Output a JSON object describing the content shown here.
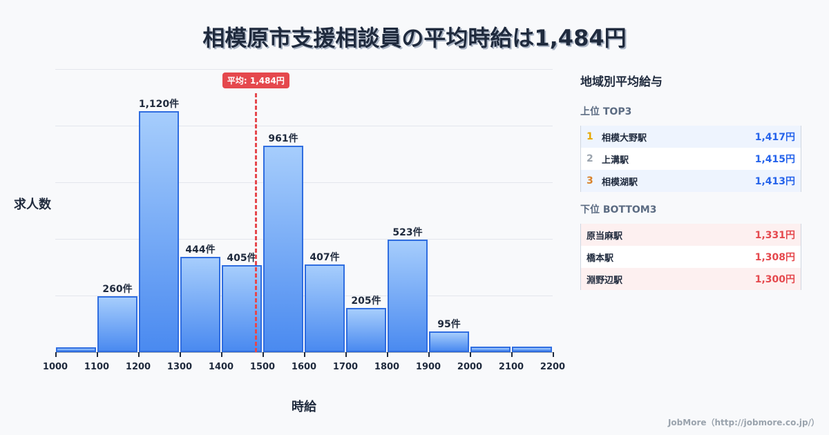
{
  "title": "相模原市支援相談員の平均時給は1,484円",
  "chart": {
    "ylabel": "求人数",
    "xlabel": "時給",
    "average_badge": "平均: 1,484円",
    "ticks": [
      "1000",
      "1100",
      "1200",
      "1300",
      "1400",
      "1500",
      "1600",
      "1700",
      "1800",
      "1900",
      "2000",
      "2100",
      "2200"
    ],
    "bar_labels": [
      "",
      "260件",
      "1,120件",
      "444件",
      "405件",
      "961件",
      "407件",
      "205件",
      "523件",
      "95件",
      "",
      ""
    ]
  },
  "chart_data": {
    "type": "bar",
    "title": "相模原市支援相談員の平均時給は1,484円",
    "xlabel": "時給",
    "ylabel": "求人数",
    "categories": [
      "1000-1100",
      "1100-1200",
      "1200-1300",
      "1300-1400",
      "1400-1500",
      "1500-1600",
      "1600-1700",
      "1700-1800",
      "1800-1900",
      "1900-2000",
      "2000-2100",
      "2100-2200"
    ],
    "values": [
      22,
      260,
      1120,
      444,
      405,
      961,
      407,
      205,
      523,
      95,
      25,
      25
    ],
    "xlim": [
      1000,
      2200
    ],
    "ylim": [
      0,
      1316
    ],
    "grid": true,
    "annotations": [
      {
        "type": "vline",
        "x": 1484,
        "label": "平均: 1,484円",
        "color": "#e5484d"
      }
    ]
  },
  "panel": {
    "title": "地域別平均給与",
    "top_title": "上位 TOP3",
    "top": [
      {
        "rank": "1",
        "rank_color": "#e6a700",
        "name": "相模大野駅",
        "value": "1,417円"
      },
      {
        "rank": "2",
        "rank_color": "#9aa3ad",
        "name": "上溝駅",
        "value": "1,415円"
      },
      {
        "rank": "3",
        "rank_color": "#d9822b",
        "name": "相模湖駅",
        "value": "1,413円"
      }
    ],
    "bottom_title": "下位 BOTTOM3",
    "bottom": [
      {
        "name": "原当麻駅",
        "value": "1,331円"
      },
      {
        "name": "橋本駅",
        "value": "1,308円"
      },
      {
        "name": "淵野辺駅",
        "value": "1,300円"
      }
    ]
  },
  "footer": "JobMore（http://jobmore.co.jp/）"
}
